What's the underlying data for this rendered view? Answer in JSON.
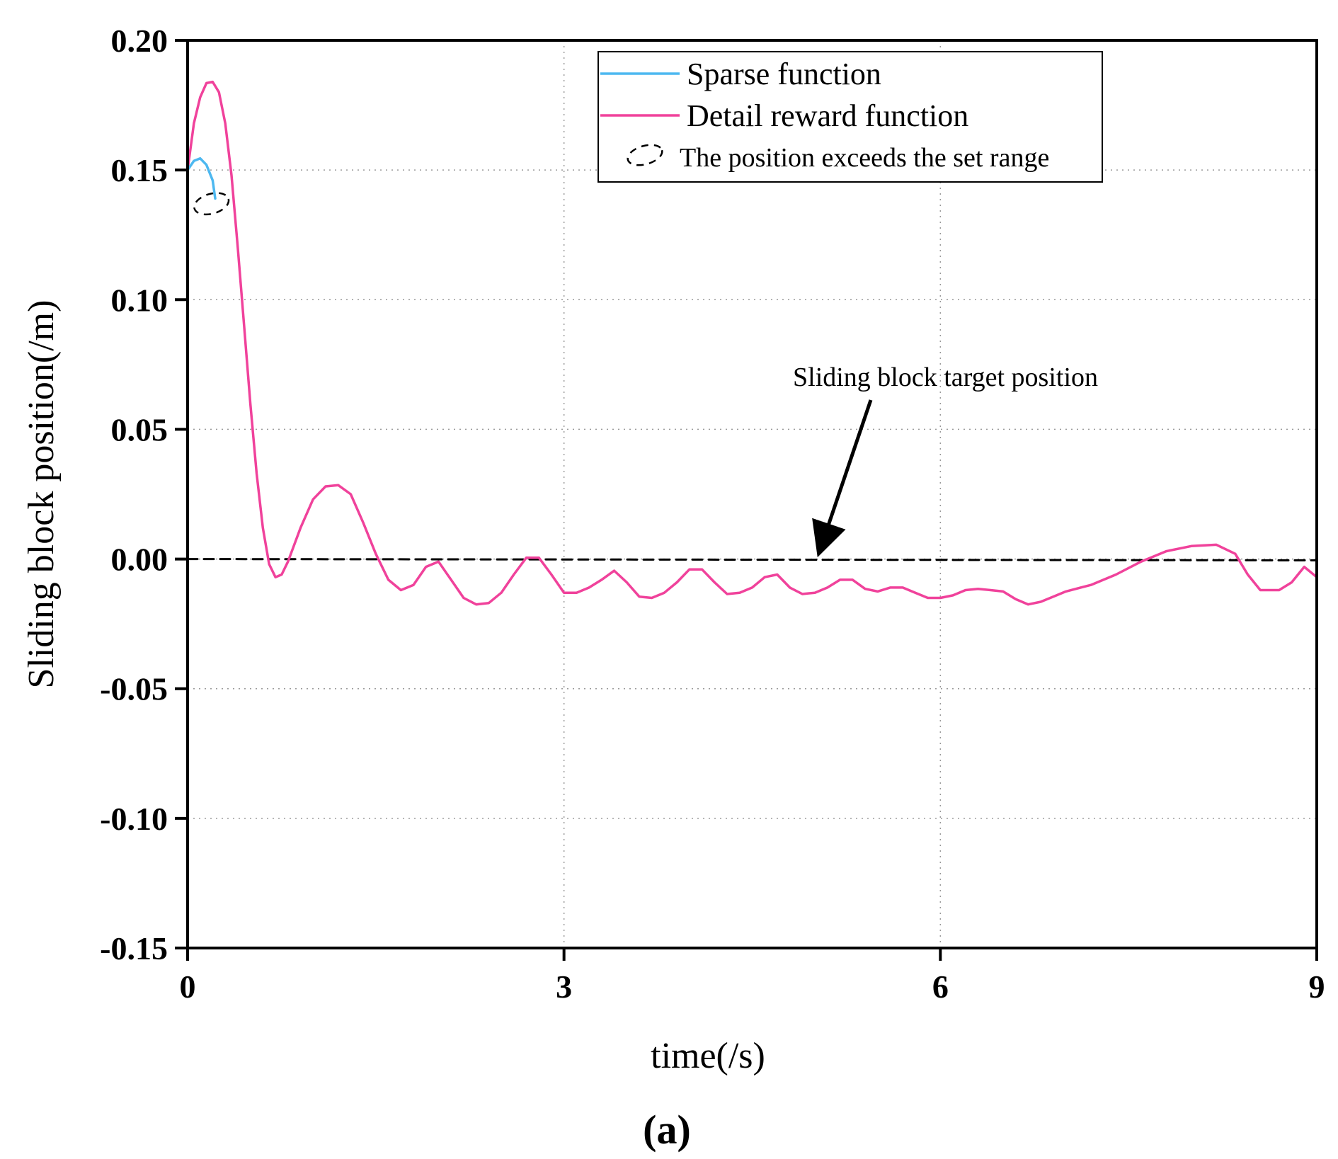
{
  "chart_data": {
    "type": "line",
    "title": "",
    "xlabel": "time(/s)",
    "ylabel": "Sliding block position(/m)",
    "panel_label": "(a)",
    "xlim": [
      0,
      9
    ],
    "ylim": [
      -0.15,
      0.2
    ],
    "grid": true,
    "x_ticks": [
      {
        "value": 0,
        "label": "0"
      },
      {
        "value": 3,
        "label": "3"
      },
      {
        "value": 6,
        "label": "6"
      },
      {
        "value": 9,
        "label": "9"
      }
    ],
    "y_ticks": [
      {
        "value": 0.2,
        "label": "0.20"
      },
      {
        "value": 0.15,
        "label": "0.15"
      },
      {
        "value": 0.1,
        "label": "0.10"
      },
      {
        "value": 0.05,
        "label": "0.05"
      },
      {
        "value": 0.0,
        "label": "0.00"
      },
      {
        "value": -0.05,
        "label": "-0.05"
      },
      {
        "value": -0.1,
        "label": "-0.10"
      },
      {
        "value": -0.15,
        "label": "-0.15"
      }
    ],
    "legend_position": "top-right",
    "legend": [
      {
        "label": "Sparse function",
        "style": "line",
        "color": "#4db8f0"
      },
      {
        "label": "Detail reward function",
        "style": "line",
        "color": "#f0429b"
      },
      {
        "label": "The position exceeds the set range",
        "style": "dashed-ellipse",
        "color": "#000000"
      }
    ],
    "series": [
      {
        "name": "Sparse function",
        "color": "#4db8f0",
        "points": [
          [
            0,
            0.15
          ],
          [
            0.05,
            0.1535
          ],
          [
            0.1,
            0.1545
          ],
          [
            0.15,
            0.152
          ],
          [
            0.2,
            0.146
          ],
          [
            0.22,
            0.139
          ]
        ]
      },
      {
        "name": "Detail reward function",
        "color": "#f0429b",
        "points": [
          [
            0,
            0.15
          ],
          [
            0.05,
            0.168
          ],
          [
            0.1,
            0.178
          ],
          [
            0.15,
            0.1835
          ],
          [
            0.2,
            0.184
          ],
          [
            0.25,
            0.18
          ],
          [
            0.3,
            0.168
          ],
          [
            0.35,
            0.148
          ],
          [
            0.4,
            0.12
          ],
          [
            0.45,
            0.09
          ],
          [
            0.5,
            0.06
          ],
          [
            0.55,
            0.033
          ],
          [
            0.6,
            0.012
          ],
          [
            0.65,
            -0.002
          ],
          [
            0.7,
            -0.007
          ],
          [
            0.75,
            -0.006
          ],
          [
            0.8,
            -0.001
          ],
          [
            0.9,
            0.012
          ],
          [
            1.0,
            0.023
          ],
          [
            1.1,
            0.028
          ],
          [
            1.2,
            0.0285
          ],
          [
            1.3,
            0.025
          ],
          [
            1.4,
            0.014
          ],
          [
            1.5,
            0.002
          ],
          [
            1.6,
            -0.008
          ],
          [
            1.7,
            -0.012
          ],
          [
            1.8,
            -0.01
          ],
          [
            1.9,
            -0.003
          ],
          [
            2.0,
            -0.001
          ],
          [
            2.1,
            -0.008
          ],
          [
            2.2,
            -0.015
          ],
          [
            2.3,
            -0.0175
          ],
          [
            2.4,
            -0.017
          ],
          [
            2.5,
            -0.013
          ],
          [
            2.6,
            -0.006
          ],
          [
            2.7,
            0.0005
          ],
          [
            2.8,
            0.0005
          ],
          [
            2.9,
            -0.006
          ],
          [
            3.0,
            -0.013
          ],
          [
            3.1,
            -0.013
          ],
          [
            3.2,
            -0.011
          ],
          [
            3.3,
            -0.008
          ],
          [
            3.4,
            -0.0045
          ],
          [
            3.5,
            -0.009
          ],
          [
            3.6,
            -0.0145
          ],
          [
            3.7,
            -0.015
          ],
          [
            3.8,
            -0.013
          ],
          [
            3.9,
            -0.009
          ],
          [
            4.0,
            -0.004
          ],
          [
            4.1,
            -0.004
          ],
          [
            4.2,
            -0.009
          ],
          [
            4.3,
            -0.0135
          ],
          [
            4.4,
            -0.013
          ],
          [
            4.5,
            -0.011
          ],
          [
            4.6,
            -0.007
          ],
          [
            4.7,
            -0.006
          ],
          [
            4.8,
            -0.011
          ],
          [
            4.9,
            -0.0135
          ],
          [
            5.0,
            -0.013
          ],
          [
            5.1,
            -0.011
          ],
          [
            5.2,
            -0.008
          ],
          [
            5.3,
            -0.008
          ],
          [
            5.4,
            -0.0115
          ],
          [
            5.5,
            -0.0125
          ],
          [
            5.6,
            -0.011
          ],
          [
            5.7,
            -0.011
          ],
          [
            5.8,
            -0.013
          ],
          [
            5.9,
            -0.015
          ],
          [
            6.0,
            -0.015
          ],
          [
            6.1,
            -0.014
          ],
          [
            6.2,
            -0.012
          ],
          [
            6.3,
            -0.0115
          ],
          [
            6.4,
            -0.012
          ],
          [
            6.5,
            -0.0125
          ],
          [
            6.6,
            -0.0155
          ],
          [
            6.7,
            -0.0175
          ],
          [
            6.8,
            -0.0165
          ],
          [
            6.9,
            -0.0145
          ],
          [
            7.0,
            -0.0125
          ],
          [
            7.2,
            -0.01
          ],
          [
            7.4,
            -0.006
          ],
          [
            7.6,
            -0.001
          ],
          [
            7.8,
            0.003
          ],
          [
            8.0,
            0.005
          ],
          [
            8.2,
            0.0055
          ],
          [
            8.35,
            0.002
          ],
          [
            8.45,
            -0.006
          ],
          [
            8.55,
            -0.012
          ],
          [
            8.7,
            -0.012
          ],
          [
            8.8,
            -0.009
          ],
          [
            8.9,
            -0.003
          ],
          [
            9.0,
            -0.007
          ]
        ]
      },
      {
        "name": "Sliding block target position",
        "color": "#000000",
        "style": "dashed",
        "points": [
          [
            0,
            0.0
          ],
          [
            9,
            -0.0005
          ]
        ]
      }
    ],
    "annotations": [
      {
        "text": "Sliding block target position",
        "arrow_to": [
          5.05,
          0.0
        ]
      },
      {
        "marker": "dashed-ellipse",
        "at": [
          0.19,
          0.137
        ]
      }
    ]
  }
}
